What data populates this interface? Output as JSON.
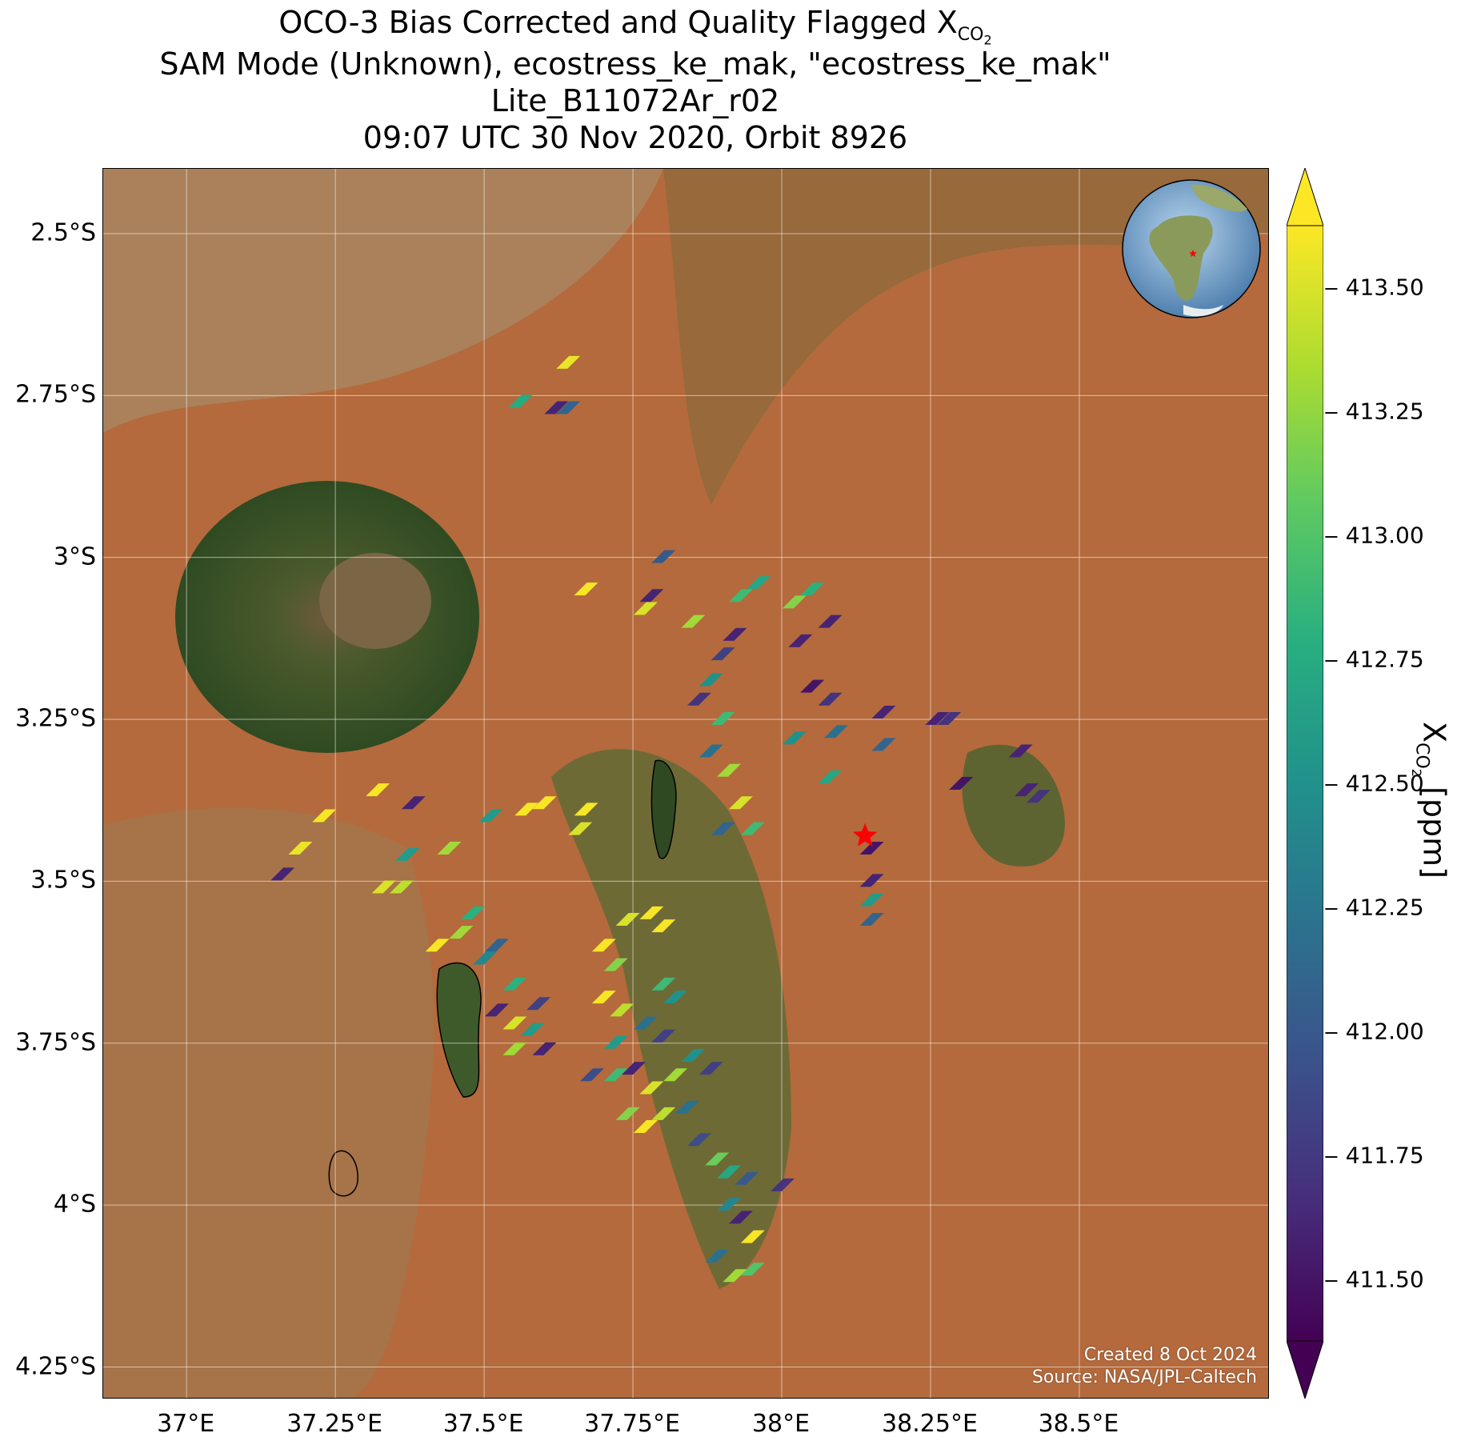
{
  "title": {
    "line1_prefix": "OCO-3 Bias Corrected and Quality Flagged X",
    "line1_sub": "CO",
    "line1_subsub": "2",
    "line2": "SAM Mode (Unknown), ecostress_ke_mak, \"ecostress_ke_mak\"",
    "line3": "Lite_B11072Ar_r02",
    "line4": "09:07 UTC 30 Nov 2020, Orbit 8926"
  },
  "map": {
    "lon_range": [
      36.86,
      38.82
    ],
    "lat_range": [
      -4.3,
      -2.4
    ],
    "x_ticks": [
      "37°E",
      "37.25°E",
      "37.5°E",
      "37.75°E",
      "38°E",
      "38.25°E",
      "38.5°E"
    ],
    "x_tick_values": [
      37.0,
      37.25,
      37.5,
      37.75,
      38.0,
      38.25,
      38.5
    ],
    "y_ticks": [
      "2.5°S",
      "2.75°S",
      "3°S",
      "3.25°S",
      "3.5°S",
      "3.75°S",
      "4°S",
      "4.25°S"
    ],
    "y_tick_values": [
      -2.5,
      -2.75,
      -3.0,
      -3.25,
      -3.5,
      -3.75,
      -4.0,
      -4.25
    ],
    "grid": true,
    "target_marker": {
      "lon": 38.14,
      "lat": -3.43,
      "color": "#ff0000",
      "shape": "star"
    },
    "inset_globe": {
      "position": "top-right",
      "marker_color": "#ff0000"
    },
    "background": "satellite imagery",
    "colors": {
      "land": "#b46a3c",
      "forest": "#3e5a26",
      "bare": "#a88560"
    }
  },
  "credits": {
    "line1": "Created 8 Oct 2024",
    "line2": "Source: NASA/JPL-Caltech"
  },
  "colorbar": {
    "label_prefix": "X",
    "label_sub": "CO",
    "label_subsub": "2",
    "label_suffix": " [ppm]",
    "colormap": "viridis",
    "range": [
      411.375,
      413.625
    ],
    "extend": "both",
    "ticks": [
      "411.50",
      "411.75",
      "412.00",
      "412.25",
      "412.50",
      "412.75",
      "413.00",
      "413.25",
      "413.50"
    ],
    "tick_values": [
      411.5,
      411.75,
      412.0,
      412.25,
      412.5,
      412.75,
      413.0,
      413.25,
      413.5
    ]
  },
  "chart_data": {
    "type": "scatter",
    "xlabel": "",
    "ylabel": "",
    "units": "ppm",
    "clusters": [
      {
        "lon": 37.64,
        "lat": -2.7,
        "xco2": 413.55
      },
      {
        "lon": 37.56,
        "lat": -2.76,
        "xco2": 412.75
      },
      {
        "lon": 37.62,
        "lat": -2.77,
        "xco2": 411.6
      },
      {
        "lon": 37.64,
        "lat": -2.77,
        "xco2": 412.1
      },
      {
        "lon": 37.8,
        "lat": -3.0,
        "xco2": 412.0
      },
      {
        "lon": 37.67,
        "lat": -3.05,
        "xco2": 413.6
      },
      {
        "lon": 37.77,
        "lat": -3.08,
        "xco2": 413.5
      },
      {
        "lon": 37.78,
        "lat": -3.06,
        "xco2": 411.6
      },
      {
        "lon": 37.85,
        "lat": -3.1,
        "xco2": 413.3
      },
      {
        "lon": 37.93,
        "lat": -3.06,
        "xco2": 412.9
      },
      {
        "lon": 37.96,
        "lat": -3.04,
        "xco2": 412.7
      },
      {
        "lon": 37.92,
        "lat": -3.12,
        "xco2": 411.6
      },
      {
        "lon": 37.9,
        "lat": -3.15,
        "xco2": 411.8
      },
      {
        "lon": 37.88,
        "lat": -3.19,
        "xco2": 412.5
      },
      {
        "lon": 37.86,
        "lat": -3.22,
        "xco2": 411.7
      },
      {
        "lon": 37.9,
        "lat": -3.25,
        "xco2": 412.9
      },
      {
        "lon": 37.88,
        "lat": -3.3,
        "xco2": 412.2
      },
      {
        "lon": 37.91,
        "lat": -3.33,
        "xco2": 413.3
      },
      {
        "lon": 37.93,
        "lat": -3.38,
        "xco2": 413.5
      },
      {
        "lon": 37.9,
        "lat": -3.42,
        "xco2": 412.1
      },
      {
        "lon": 37.95,
        "lat": -3.42,
        "xco2": 412.9
      },
      {
        "lon": 38.02,
        "lat": -3.07,
        "xco2": 413.2
      },
      {
        "lon": 38.05,
        "lat": -3.05,
        "xco2": 412.8
      },
      {
        "lon": 38.03,
        "lat": -3.13,
        "xco2": 411.6
      },
      {
        "lon": 38.08,
        "lat": -3.1,
        "xco2": 411.6
      },
      {
        "lon": 38.05,
        "lat": -3.2,
        "xco2": 411.5
      },
      {
        "lon": 38.08,
        "lat": -3.22,
        "xco2": 411.7
      },
      {
        "lon": 38.02,
        "lat": -3.28,
        "xco2": 412.5
      },
      {
        "lon": 38.09,
        "lat": -3.27,
        "xco2": 412.2
      },
      {
        "lon": 38.08,
        "lat": -3.34,
        "xco2": 412.7
      },
      {
        "lon": 38.17,
        "lat": -3.24,
        "xco2": 411.6
      },
      {
        "lon": 38.17,
        "lat": -3.29,
        "xco2": 412.1
      },
      {
        "lon": 38.26,
        "lat": -3.25,
        "xco2": 411.6
      },
      {
        "lon": 38.28,
        "lat": -3.25,
        "xco2": 411.7
      },
      {
        "lon": 38.4,
        "lat": -3.3,
        "xco2": 411.6
      },
      {
        "lon": 38.3,
        "lat": -3.35,
        "xco2": 411.5
      },
      {
        "lon": 38.41,
        "lat": -3.36,
        "xco2": 411.6
      },
      {
        "lon": 38.43,
        "lat": -3.37,
        "xco2": 411.7
      },
      {
        "lon": 38.15,
        "lat": -3.45,
        "xco2": 411.5
      },
      {
        "lon": 38.15,
        "lat": -3.5,
        "xco2": 411.6
      },
      {
        "lon": 38.15,
        "lat": -3.53,
        "xco2": 412.6
      },
      {
        "lon": 38.15,
        "lat": -3.56,
        "xco2": 412.1
      },
      {
        "lon": 37.23,
        "lat": -3.4,
        "xco2": 413.6
      },
      {
        "lon": 37.19,
        "lat": -3.45,
        "xco2": 413.55
      },
      {
        "lon": 37.16,
        "lat": -3.49,
        "xco2": 411.6
      },
      {
        "lon": 37.32,
        "lat": -3.36,
        "xco2": 413.6
      },
      {
        "lon": 37.38,
        "lat": -3.38,
        "xco2": 411.6
      },
      {
        "lon": 37.37,
        "lat": -3.46,
        "xco2": 412.6
      },
      {
        "lon": 37.44,
        "lat": -3.45,
        "xco2": 413.3
      },
      {
        "lon": 37.33,
        "lat": -3.51,
        "xco2": 413.5
      },
      {
        "lon": 37.36,
        "lat": -3.51,
        "xco2": 413.4
      },
      {
        "lon": 37.51,
        "lat": -3.4,
        "xco2": 412.6
      },
      {
        "lon": 37.57,
        "lat": -3.39,
        "xco2": 413.6
      },
      {
        "lon": 37.6,
        "lat": -3.38,
        "xco2": 413.6
      },
      {
        "lon": 37.67,
        "lat": -3.39,
        "xco2": 413.6
      },
      {
        "lon": 37.66,
        "lat": -3.42,
        "xco2": 413.5
      },
      {
        "lon": 37.42,
        "lat": -3.6,
        "xco2": 413.6
      },
      {
        "lon": 37.46,
        "lat": -3.58,
        "xco2": 413.3
      },
      {
        "lon": 37.48,
        "lat": -3.55,
        "xco2": 412.8
      },
      {
        "lon": 37.5,
        "lat": -3.62,
        "xco2": 412.4
      },
      {
        "lon": 37.52,
        "lat": -3.6,
        "xco2": 412.1
      },
      {
        "lon": 37.55,
        "lat": -3.66,
        "xco2": 412.8
      },
      {
        "lon": 37.52,
        "lat": -3.7,
        "xco2": 411.6
      },
      {
        "lon": 37.55,
        "lat": -3.72,
        "xco2": 413.5
      },
      {
        "lon": 37.58,
        "lat": -3.73,
        "xco2": 412.6
      },
      {
        "lon": 37.55,
        "lat": -3.76,
        "xco2": 413.3
      },
      {
        "lon": 37.59,
        "lat": -3.69,
        "xco2": 411.8
      },
      {
        "lon": 37.6,
        "lat": -3.76,
        "xco2": 411.6
      },
      {
        "lon": 37.7,
        "lat": -3.6,
        "xco2": 413.6
      },
      {
        "lon": 37.72,
        "lat": -3.63,
        "xco2": 413.2
      },
      {
        "lon": 37.74,
        "lat": -3.56,
        "xco2": 413.5
      },
      {
        "lon": 37.78,
        "lat": -3.55,
        "xco2": 413.6
      },
      {
        "lon": 37.8,
        "lat": -3.57,
        "xco2": 413.6
      },
      {
        "lon": 37.7,
        "lat": -3.68,
        "xco2": 413.6
      },
      {
        "lon": 37.73,
        "lat": -3.7,
        "xco2": 413.4
      },
      {
        "lon": 37.8,
        "lat": -3.66,
        "xco2": 412.9
      },
      {
        "lon": 37.82,
        "lat": -3.68,
        "xco2": 412.5
      },
      {
        "lon": 37.77,
        "lat": -3.72,
        "xco2": 412.2
      },
      {
        "lon": 37.8,
        "lat": -3.74,
        "xco2": 411.8
      },
      {
        "lon": 37.72,
        "lat": -3.75,
        "xco2": 412.6
      },
      {
        "lon": 37.68,
        "lat": -3.8,
        "xco2": 411.9
      },
      {
        "lon": 37.72,
        "lat": -3.8,
        "xco2": 412.9
      },
      {
        "lon": 37.75,
        "lat": -3.79,
        "xco2": 411.6
      },
      {
        "lon": 37.78,
        "lat": -3.82,
        "xco2": 413.5
      },
      {
        "lon": 37.82,
        "lat": -3.8,
        "xco2": 413.3
      },
      {
        "lon": 37.85,
        "lat": -3.77,
        "xco2": 412.5
      },
      {
        "lon": 37.88,
        "lat": -3.79,
        "xco2": 411.8
      },
      {
        "lon": 37.74,
        "lat": -3.86,
        "xco2": 413.2
      },
      {
        "lon": 37.77,
        "lat": -3.88,
        "xco2": 413.6
      },
      {
        "lon": 37.8,
        "lat": -3.86,
        "xco2": 413.4
      },
      {
        "lon": 37.84,
        "lat": -3.85,
        "xco2": 412.2
      },
      {
        "lon": 37.86,
        "lat": -3.9,
        "xco2": 411.9
      },
      {
        "lon": 37.89,
        "lat": -3.93,
        "xco2": 413.1
      },
      {
        "lon": 37.91,
        "lat": -3.95,
        "xco2": 412.7
      },
      {
        "lon": 37.94,
        "lat": -3.96,
        "xco2": 412.0
      },
      {
        "lon": 38.0,
        "lat": -3.97,
        "xco2": 411.7
      },
      {
        "lon": 37.91,
        "lat": -4.0,
        "xco2": 412.4
      },
      {
        "lon": 37.93,
        "lat": -4.02,
        "xco2": 411.6
      },
      {
        "lon": 37.95,
        "lat": -4.05,
        "xco2": 413.6
      },
      {
        "lon": 37.95,
        "lat": -4.1,
        "xco2": 413.0
      },
      {
        "lon": 37.92,
        "lat": -4.11,
        "xco2": 413.3
      },
      {
        "lon": 37.89,
        "lat": -4.08,
        "xco2": 412.2
      }
    ]
  }
}
